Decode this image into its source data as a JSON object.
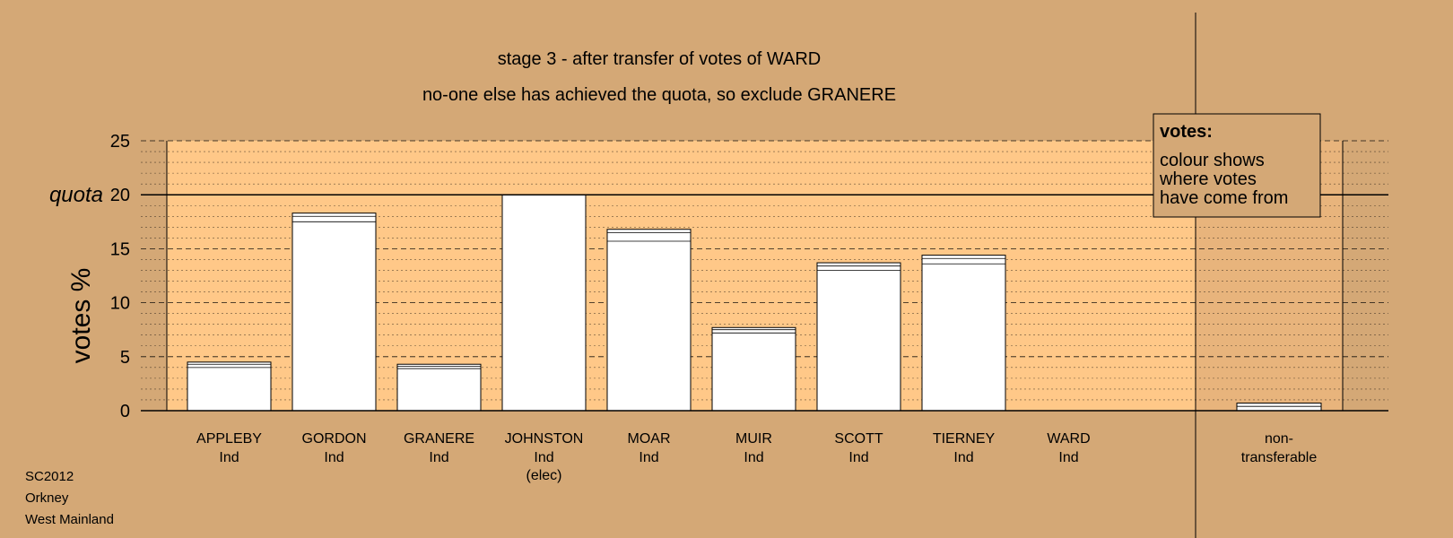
{
  "chart_data": {
    "type": "bar",
    "title": "stage 3 - after transfer of votes of WARD",
    "subtitle": "no-one else has achieved the quota, so exclude GRANERE",
    "ylabel": "votes %",
    "xlabel": "",
    "ylim": [
      0,
      25
    ],
    "yticks": [
      0,
      5,
      10,
      15,
      20,
      25
    ],
    "quota": 20,
    "quota_label": "quota",
    "grid": "dashed major every 5, dotted minor every 1",
    "categories": [
      {
        "name": "APPLEBY",
        "party": "Ind",
        "note": ""
      },
      {
        "name": "GORDON",
        "party": "Ind",
        "note": ""
      },
      {
        "name": "GRANERE",
        "party": "Ind",
        "note": ""
      },
      {
        "name": "JOHNSTON",
        "party": "Ind",
        "note": "(elec)"
      },
      {
        "name": "MOAR",
        "party": "Ind",
        "note": ""
      },
      {
        "name": "MUIR",
        "party": "Ind",
        "note": ""
      },
      {
        "name": "SCOTT",
        "party": "Ind",
        "note": ""
      },
      {
        "name": "TIERNEY",
        "party": "Ind",
        "note": ""
      },
      {
        "name": "WARD",
        "party": "Ind",
        "note": ""
      }
    ],
    "values": [
      4.5,
      18.3,
      4.3,
      20.0,
      16.8,
      7.7,
      13.7,
      14.4,
      0
    ],
    "segments": [
      [
        4.0,
        0.3,
        0.2
      ],
      [
        17.5,
        0.5,
        0.3
      ],
      [
        3.9,
        0.2,
        0.2
      ],
      [
        20.0
      ],
      [
        15.7,
        0.8,
        0.3
      ],
      [
        7.2,
        0.3,
        0.2
      ],
      [
        13.0,
        0.4,
        0.3
      ],
      [
        13.6,
        0.5,
        0.3
      ],
      []
    ],
    "nontransferable": {
      "label_line1": "non-",
      "label_line2": "transferable",
      "value": 0.7,
      "segments": [
        0.4,
        0.3
      ]
    }
  },
  "legend": {
    "title": "votes:",
    "lines": [
      "colour shows",
      "where votes",
      "have come from"
    ]
  },
  "footer": [
    "SC2012",
    "Orkney",
    "West Mainland"
  ]
}
